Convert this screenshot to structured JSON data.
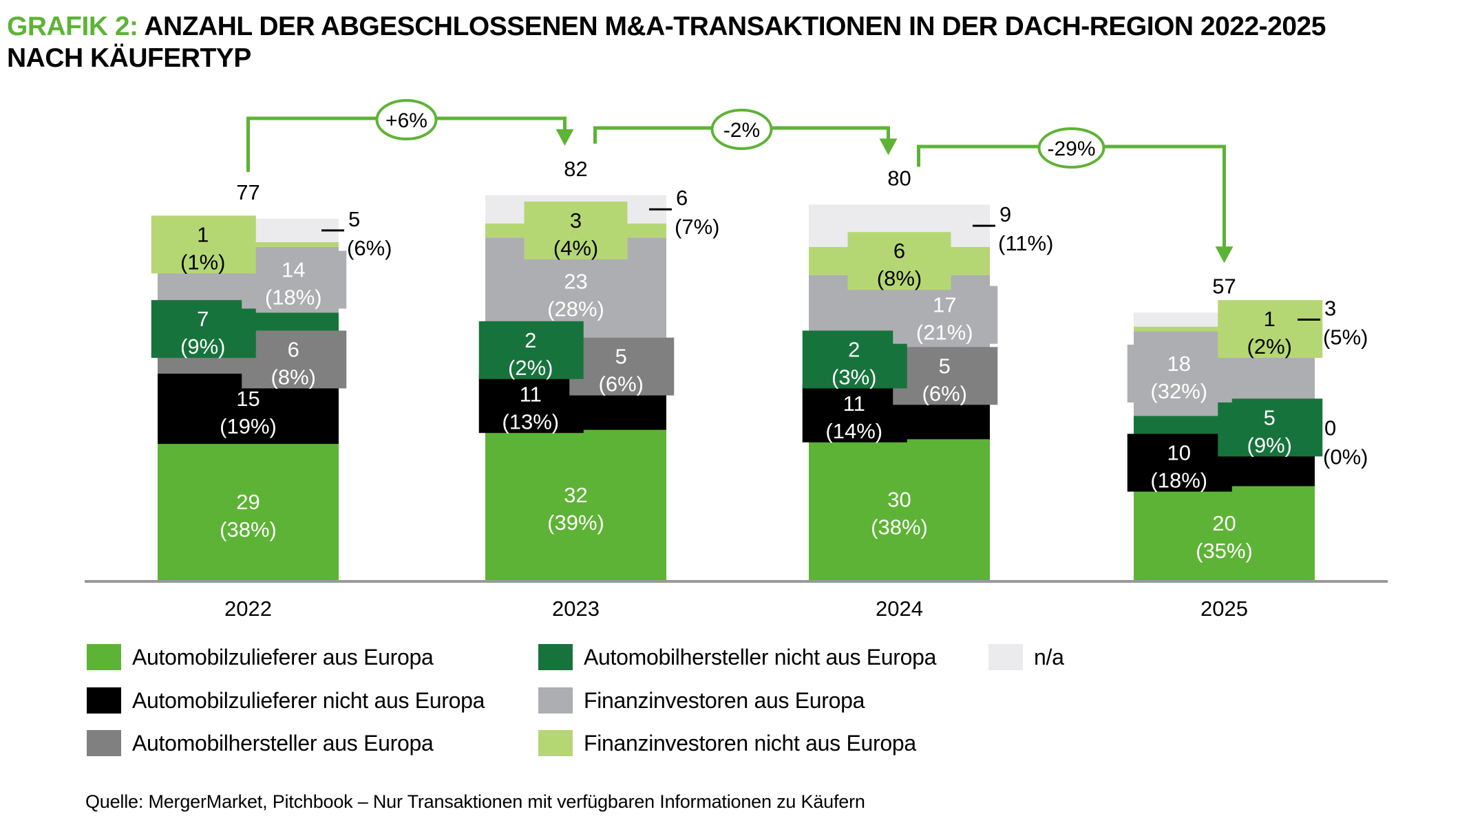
{
  "title": {
    "prefix": "GRAFIK 2:",
    "line1": " ANZAHL DER ABGESCHLOSSENEN M&A-TRANSAKTIONEN IN DER DACH-REGION 2022-2025",
    "line2": "NACH KÄUFERTYP"
  },
  "colors": {
    "accent": "#5db335",
    "Automobilzulieferer aus Europa": "#5db335",
    "Automobilzulieferer nicht aus Europa": "#000000",
    "Automobilhersteller aus Europa": "#808080",
    "Automobilhersteller nicht aus Europa": "#17733c",
    "Finanzinvestoren aus Europa": "#adaeb1",
    "Finanzinvestoren nicht aus Europa": "#b5d773",
    "n/a": "#ebebed",
    "axis": "#999999"
  },
  "chart_data": {
    "type": "bar",
    "stacked": true,
    "title": "ANZAHL DER ABGESCHLOSSENEN M&A-TRANSAKTIONEN IN DER DACH-REGION 2022-2025 NACH KÄUFERTYP",
    "xlabel": "",
    "ylabel": "",
    "categories": [
      "2022",
      "2023",
      "2024",
      "2025"
    ],
    "totals": [
      77,
      82,
      80,
      57
    ],
    "ylim": [
      0,
      82
    ],
    "grid": false,
    "legend_position": "bottom",
    "series": [
      {
        "name": "Automobilzulieferer aus Europa",
        "values": [
          29,
          32,
          30,
          20
        ],
        "percent_labels": [
          "(38%)",
          "(39%)",
          "(38%)",
          "(35%)"
        ]
      },
      {
        "name": "Automobilzulieferer nicht aus Europa",
        "values": [
          15,
          11,
          11,
          10
        ],
        "percent_labels": [
          "(19%)",
          "(13%)",
          "(14%)",
          "(18%)"
        ]
      },
      {
        "name": "Automobilhersteller aus Europa",
        "values": [
          6,
          5,
          5,
          0
        ],
        "percent_labels": [
          "(8%)",
          "(6%)",
          "(6%)",
          "(0%)"
        ]
      },
      {
        "name": "Automobilhersteller nicht aus Europa",
        "values": [
          7,
          2,
          2,
          5
        ],
        "percent_labels": [
          "(9%)",
          "(2%)",
          "(3%)",
          "(9%)"
        ]
      },
      {
        "name": "Finanzinvestoren aus Europa",
        "values": [
          14,
          23,
          17,
          18
        ],
        "percent_labels": [
          "(18%)",
          "(28%)",
          "(21%)",
          "(32%)"
        ]
      },
      {
        "name": "Finanzinvestoren nicht aus Europa",
        "values": [
          1,
          3,
          6,
          1
        ],
        "percent_labels": [
          "(1%)",
          "(4%)",
          "(8%)",
          "(2%)"
        ]
      },
      {
        "name": "n/a",
        "values": [
          5,
          6,
          9,
          3
        ],
        "percent_labels": [
          "(6%)",
          "(7%)",
          "(11%)",
          "(5%)"
        ]
      }
    ],
    "changes": [
      {
        "from": "2022",
        "to": "2023",
        "label": "+6%"
      },
      {
        "from": "2023",
        "to": "2024",
        "label": "-2%"
      },
      {
        "from": "2024",
        "to": "2025",
        "label": "-29%"
      }
    ]
  },
  "legend": [
    {
      "label": "Automobilzulieferer aus Europa"
    },
    {
      "label": "Automobilzulieferer nicht aus Europa"
    },
    {
      "label": "Automobilhersteller aus Europa"
    },
    {
      "label": "Automobilhersteller nicht aus Europa"
    },
    {
      "label": "Finanzinvestoren aus Europa"
    },
    {
      "label": "Finanzinvestoren nicht aus Europa"
    },
    {
      "label": "n/a"
    }
  ],
  "source": "Quelle: MergerMarket, Pitchbook – Nur Transaktionen mit verfügbaren Informationen zu Käufern"
}
